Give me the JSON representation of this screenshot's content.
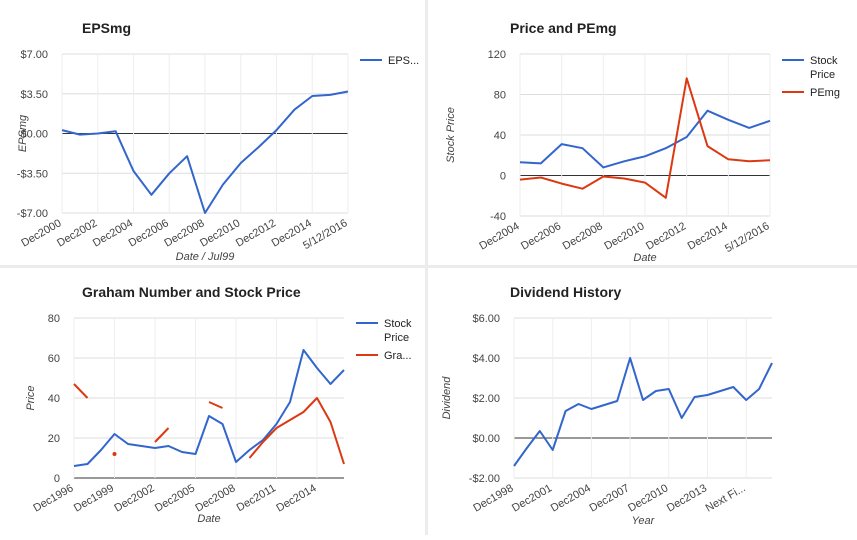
{
  "colors": {
    "blue": "#3366cc",
    "red": "#dc3912",
    "grid": "#dddddd",
    "axis": "#333333",
    "text": "#444444"
  },
  "chart_data": [
    {
      "id": "eps",
      "type": "line",
      "title": "EPSmg",
      "xlabel": "Date / Jul99",
      "ylabel": "EPSmg",
      "ylim": [
        -7,
        7
      ],
      "yticks": [
        7,
        3.5,
        0,
        -3.5,
        -7
      ],
      "ytick_labels": [
        "$7.00",
        "$3.50",
        "$0.00",
        "-$3.50",
        "-$7.00"
      ],
      "x_labels": [
        "Dec2000",
        "Dec2002",
        "Dec2004",
        "Dec2006",
        "Dec2008",
        "Dec2010",
        "Dec2012",
        "Dec2014",
        "5/12/2016"
      ],
      "x_label_index": [
        0,
        2,
        4,
        6,
        8,
        10,
        12,
        14,
        16
      ],
      "grid": true,
      "legend": "right",
      "series": [
        {
          "name": "EPS...",
          "color": "#3366cc",
          "values": [
            0.3,
            -0.1,
            0.0,
            0.2,
            -3.3,
            -5.4,
            -3.5,
            -2.0,
            -7.0,
            -4.5,
            -2.6,
            -1.2,
            0.3,
            2.1,
            3.3,
            3.4,
            3.7
          ]
        }
      ]
    },
    {
      "id": "price-pe",
      "type": "line",
      "title": "Price and PEmg",
      "xlabel": "Date",
      "ylabel": "Stock Price",
      "ylim": [
        -40,
        120
      ],
      "yticks": [
        120,
        80,
        40,
        0,
        -40
      ],
      "ytick_labels": [
        "120",
        "80",
        "40",
        "0",
        "-40"
      ],
      "x_labels": [
        "Dec2004",
        "Dec2006",
        "Dec2008",
        "Dec2010",
        "Dec2012",
        "Dec2014",
        "5/12/2016"
      ],
      "x_label_index": [
        0,
        2,
        4,
        6,
        8,
        10,
        12
      ],
      "grid": true,
      "legend": "right",
      "series": [
        {
          "name": "Stock Price",
          "color": "#3366cc",
          "values": [
            13,
            12,
            31,
            27,
            8,
            14,
            19,
            27,
            38,
            64,
            55,
            47,
            54
          ]
        },
        {
          "name": "PEmg",
          "color": "#dc3912",
          "values": [
            -4,
            -2,
            -8,
            -13,
            -1,
            -3,
            -7,
            -22,
            96,
            29,
            16,
            14,
            15
          ]
        }
      ]
    },
    {
      "id": "graham",
      "type": "line",
      "title": "Graham Number and Stock Price",
      "xlabel": "Date",
      "ylabel": "Price",
      "ylim": [
        0,
        80
      ],
      "yticks": [
        80,
        60,
        40,
        20,
        0
      ],
      "ytick_labels": [
        "80",
        "60",
        "40",
        "20",
        "0"
      ],
      "x_labels": [
        "Dec1996",
        "Dec1999",
        "Dec2002",
        "Dec2005",
        "Dec2008",
        "Dec2011",
        "Dec2014"
      ],
      "x_label_index": [
        0,
        3,
        6,
        9,
        12,
        15,
        18
      ],
      "grid": true,
      "legend": "right",
      "series": [
        {
          "name": "Stock Price",
          "color": "#3366cc",
          "values": [
            6,
            7,
            14,
            22,
            17,
            16,
            15,
            16,
            13,
            12,
            31,
            27,
            8,
            14,
            19,
            27,
            38,
            64,
            55,
            47,
            54
          ]
        },
        {
          "name": "Gra...",
          "color": "#dc3912",
          "values": [
            47,
            40,
            null,
            12,
            null,
            null,
            18,
            25,
            null,
            null,
            38,
            35,
            null,
            10,
            18,
            25,
            29,
            33,
            40,
            28,
            7
          ]
        }
      ]
    },
    {
      "id": "dividend",
      "type": "line",
      "title": "Dividend History",
      "xlabel": "Year",
      "ylabel": "Dividend",
      "ylim": [
        -2,
        6
      ],
      "yticks": [
        6,
        4,
        2,
        0,
        -2
      ],
      "ytick_labels": [
        "$6.00",
        "$4.00",
        "$2.00",
        "$0.00",
        "-$2.00"
      ],
      "x_labels": [
        "Dec1998",
        "Dec2001",
        "Dec2004",
        "Dec2007",
        "Dec2010",
        "Dec2013",
        "Next Fi..."
      ],
      "x_label_index": [
        0,
        3,
        6,
        9,
        12,
        15,
        18
      ],
      "grid": true,
      "legend": "none",
      "series": [
        {
          "name": "",
          "color": "#3366cc",
          "values": [
            -1.4,
            -0.5,
            0.35,
            -0.6,
            1.35,
            1.7,
            1.45,
            1.65,
            1.85,
            4.0,
            1.9,
            2.35,
            2.45,
            1.0,
            2.05,
            2.15,
            2.35,
            2.55,
            1.9,
            2.45,
            3.75
          ]
        }
      ]
    }
  ]
}
